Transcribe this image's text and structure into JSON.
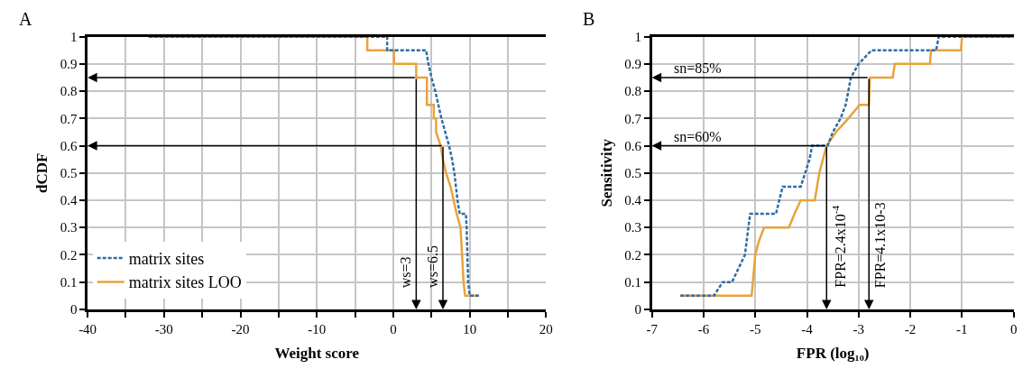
{
  "chart_data": [
    {
      "type": "line",
      "title": "A",
      "xlabel": "Weight score",
      "ylabel": "dCDF",
      "series": [
        {
          "name": "matrix sites",
          "color": "#2e6da4",
          "line_style": "dashed",
          "x": [
            -32,
            -0.8,
            -0.8,
            4.3,
            4.6,
            5.0,
            5.5,
            5.9,
            6.3,
            6.8,
            7.3,
            7.7,
            8.0,
            8.2,
            8.4,
            8.7,
            9.5,
            9.6,
            9.8,
            10.0,
            11.2
          ],
          "values": [
            1,
            1,
            0.95,
            0.95,
            0.9,
            0.85,
            0.8,
            0.75,
            0.7,
            0.65,
            0.6,
            0.55,
            0.5,
            0.45,
            0.4,
            0.35,
            0.35,
            0.3,
            0.1,
            0.05,
            0.05
          ]
        },
        {
          "name": "matrix sites LOO",
          "color": "#e8a33c",
          "line_style": "solid",
          "x": [
            -32,
            -3.4,
            -3.4,
            0.1,
            0.1,
            3.0,
            3.0,
            4.4,
            4.4,
            5.3,
            5.3,
            5.6,
            5.6,
            6.2,
            6.5,
            6.9,
            7.5,
            7.9,
            8.3,
            8.8,
            8.9,
            9.2,
            9.4,
            11.2
          ],
          "values": [
            1,
            1,
            0.95,
            0.95,
            0.9,
            0.9,
            0.85,
            0.85,
            0.75,
            0.75,
            0.7,
            0.7,
            0.65,
            0.6,
            0.55,
            0.5,
            0.45,
            0.4,
            0.35,
            0.3,
            0.25,
            0.1,
            0.05,
            0.05
          ]
        }
      ],
      "xlim": [
        -40,
        20
      ],
      "xticks": [
        -40,
        {
          "value": -35,
          "label": null
        },
        -30,
        {
          "value": -25,
          "label": null
        },
        -20,
        {
          "value": -15,
          "label": null
        },
        -10,
        {
          "value": -5,
          "label": null
        },
        0,
        {
          "value": 5,
          "label": null
        },
        10,
        {
          "value": 15,
          "label": null
        },
        20
      ],
      "ylim": [
        0,
        1
      ],
      "yticks": [
        0,
        0.1,
        0.2,
        0.3,
        0.4,
        0.5,
        0.6,
        0.7,
        0.8,
        0.9,
        1
      ],
      "ref_lines": [
        {
          "axis": "y",
          "value": 0.85
        },
        {
          "axis": "x",
          "value": 3,
          "label": "ws=3"
        },
        {
          "axis": "y",
          "value": 0.6
        },
        {
          "axis": "x",
          "value": 6.5,
          "label": "ws=6.5"
        }
      ],
      "grid": true,
      "legend": "bottom left",
      "marker": "none"
    },
    {
      "type": "line",
      "title": "B",
      "xlabel": "FPR (log₁₀)",
      "ylabel": "Sensitivity",
      "series": [
        {
          "color": "#2e6da4",
          "line_style": "dashed",
          "x": [
            -6.45,
            -5.8,
            -5.63,
            -5.45,
            -5.2,
            -5.1,
            -4.6,
            -4.47,
            -4.12,
            -3.95,
            -3.9,
            -3.6,
            -3.5,
            -3.35,
            -3.25,
            -3.2,
            -3.15,
            -3.0,
            -2.75,
            -1.5,
            -1.45,
            0
          ],
          "values": [
            0.05,
            0.05,
            0.1,
            0.1,
            0.2,
            0.35,
            0.35,
            0.45,
            0.45,
            0.55,
            0.6,
            0.6,
            0.65,
            0.7,
            0.75,
            0.8,
            0.85,
            0.9,
            0.95,
            0.95,
            1,
            1
          ]
        },
        {
          "color": "#e8a33c",
          "line_style": "solid",
          "x": [
            -6.45,
            -5.07,
            -5.0,
            -4.93,
            -4.83,
            -4.35,
            -4.24,
            -4.12,
            -3.85,
            -3.76,
            -3.62,
            -3.44,
            -3.2,
            -2.98,
            -2.8,
            -2.78,
            -2.34,
            -2.3,
            -1.62,
            -1.6,
            -1.02,
            -1.0,
            0
          ],
          "values": [
            0.05,
            0.05,
            0.2,
            0.25,
            0.3,
            0.3,
            0.35,
            0.4,
            0.4,
            0.5,
            0.6,
            0.65,
            0.7,
            0.75,
            0.75,
            0.85,
            0.85,
            0.9,
            0.9,
            0.95,
            0.95,
            1,
            1
          ]
        }
      ],
      "xlim": [
        -7,
        0
      ],
      "xticks": [
        -7,
        -6,
        -5,
        -4,
        -3,
        -2,
        -1,
        0
      ],
      "ylim": [
        0,
        1
      ],
      "yticks": [
        0,
        0.1,
        0.2,
        0.3,
        0.4,
        0.5,
        0.6,
        0.7,
        0.8,
        0.9,
        1
      ],
      "ref_lines": [
        {
          "axis": "y",
          "value": 0.85,
          "label": "sn=85%"
        },
        {
          "axis": "x",
          "value": -2.8,
          "label": "FPR=4.1x10-3"
        },
        {
          "axis": "y",
          "value": 0.6,
          "label": "sn=60%"
        },
        {
          "axis": "x",
          "value": -3.62,
          "label": "FPR=2.4x10$^{-4}$"
        }
      ],
      "grid": true,
      "marker": "none"
    }
  ]
}
